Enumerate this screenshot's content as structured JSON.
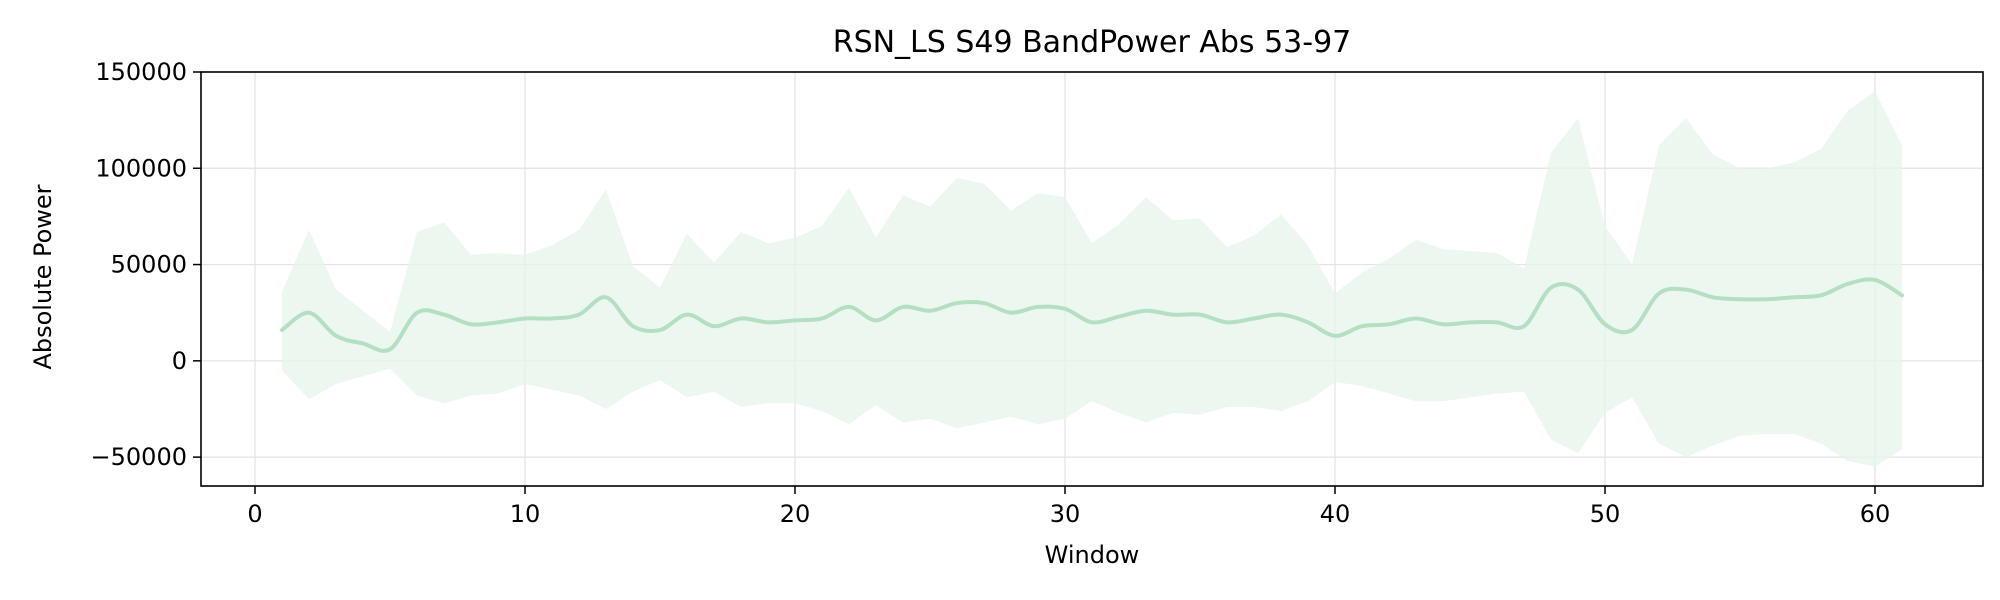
{
  "chart_data": {
    "type": "line",
    "title": "RSN_LS S49 BandPower Abs 53-97",
    "xlabel": "Window",
    "ylabel": "Absolute Power",
    "xlim": [
      -2,
      64
    ],
    "ylim": [
      -65000,
      150000
    ],
    "x_ticks": [
      0,
      10,
      20,
      30,
      40,
      50,
      60
    ],
    "y_ticks": [
      -50000,
      0,
      50000,
      100000,
      150000
    ],
    "x_tick_labels": [
      "0",
      "10",
      "20",
      "30",
      "40",
      "50",
      "60"
    ],
    "y_tick_labels": [
      "−50000",
      "0",
      "50000",
      "100000",
      "150000"
    ],
    "grid": true,
    "legend": "none",
    "colors": {
      "line": "#b5dfc3",
      "band": "#e6f4ea",
      "grid": "#e3e3e3",
      "axes": "#000000"
    },
    "series": [
      {
        "x": [
          1,
          2,
          3,
          4,
          5,
          6,
          7,
          8,
          9,
          10,
          11,
          12,
          13,
          14,
          15,
          16,
          17,
          18,
          19,
          20,
          21,
          22,
          23,
          24,
          25,
          26,
          27,
          28,
          29,
          30,
          31,
          32,
          33,
          34,
          35,
          36,
          37,
          38,
          39,
          40,
          41,
          42,
          43,
          44,
          45,
          46,
          47,
          48,
          49,
          50,
          51,
          52,
          53,
          54,
          55,
          56,
          57,
          58,
          59,
          60,
          61
        ],
        "mean": [
          16000,
          25000,
          13000,
          9000,
          6000,
          25000,
          24000,
          19000,
          20000,
          22000,
          22000,
          24000,
          33000,
          18000,
          16000,
          24000,
          18000,
          22000,
          20000,
          21000,
          22000,
          28000,
          21000,
          28000,
          26000,
          30000,
          30000,
          25000,
          28000,
          27000,
          20000,
          23000,
          26000,
          24000,
          24000,
          20000,
          22000,
          24000,
          20000,
          13000,
          18000,
          19000,
          22000,
          19000,
          20000,
          20000,
          18000,
          38000,
          37000,
          19000,
          16000,
          35000,
          37000,
          33000,
          32000,
          32000,
          33000,
          34000,
          40000,
          42000,
          34000
        ],
        "upper": [
          36000,
          68000,
          37000,
          26000,
          15000,
          67000,
          72000,
          55000,
          56000,
          55000,
          60000,
          68000,
          89000,
          49000,
          38000,
          66000,
          51000,
          67000,
          61000,
          64000,
          70000,
          90000,
          64000,
          86000,
          80000,
          95000,
          92000,
          78000,
          87000,
          85000,
          61000,
          71000,
          85000,
          73000,
          74000,
          59000,
          65000,
          76000,
          60000,
          35000,
          46000,
          53000,
          63000,
          58000,
          57000,
          56000,
          48000,
          108000,
          126000,
          70000,
          50000,
          112000,
          126000,
          107000,
          100000,
          100000,
          103000,
          110000,
          130000,
          140000,
          112000
        ],
        "lower": [
          -5000,
          -20000,
          -12000,
          -8000,
          -4000,
          -18000,
          -22000,
          -18000,
          -17000,
          -12000,
          -15000,
          -18000,
          -25000,
          -16000,
          -10000,
          -19000,
          -16000,
          -24000,
          -22000,
          -22000,
          -26000,
          -33000,
          -23000,
          -32000,
          -30000,
          -35000,
          -32000,
          -29000,
          -33000,
          -30000,
          -21000,
          -27000,
          -32000,
          -27000,
          -28000,
          -24000,
          -24000,
          -26000,
          -21000,
          -11000,
          -13000,
          -17000,
          -21000,
          -21000,
          -19000,
          -17000,
          -16000,
          -41000,
          -48000,
          -27000,
          -19000,
          -43000,
          -50000,
          -44000,
          -39000,
          -38000,
          -38000,
          -43000,
          -52000,
          -55000,
          -46000
        ]
      }
    ]
  }
}
